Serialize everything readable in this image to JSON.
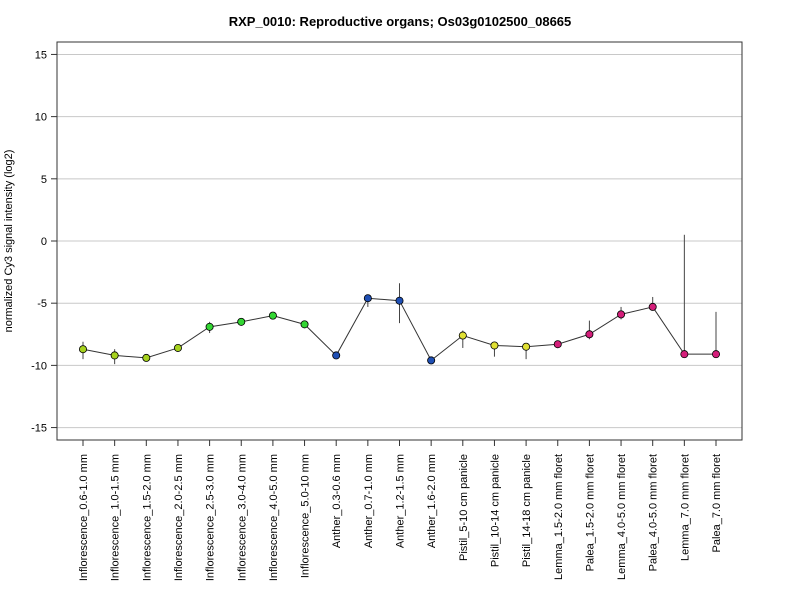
{
  "chart_data": {
    "type": "line",
    "title": "RXP_0010: Reproductive organs; Os03g0102500_08665",
    "xlabel": "",
    "ylabel": "normalized Cy3 signal intensity (log2)",
    "ylim": [
      -16,
      16
    ],
    "yticks": [
      15,
      10,
      5,
      0,
      -5,
      -10,
      -15
    ],
    "grid": true,
    "categories": [
      "Inflorescence_0.6-1.0 mm",
      "Inflorescence_1.0-1.5 mm",
      "Inflorescence_1.5-2.0 mm",
      "Inflorescence_2.0-2.5 mm",
      "Inflorescence_2.5-3.0 mm",
      "Inflorescence_3.0-4.0 mm",
      "Inflorescence_4.0-5.0 mm",
      "Inflorescence_5.0-10 mm",
      "Anther_0.3-0.6 mm",
      "Anther_0.7-1.0 mm",
      "Anther_1.2-1.5 mm",
      "Anther_1.6-2.0 mm",
      "Pistil_5-10 cm panicle",
      "Pistil_10-14 cm panicle",
      "Pistil_14-18 cm panicle",
      "Lemma_1.5-2.0 mm floret",
      "Palea_1.5-2.0 mm floret",
      "Lemma_4.0-5.0 mm floret",
      "Palea_4.0-5.0 mm floret",
      "Lemma_7.0 mm floret",
      "Palea_7.0 mm floret"
    ],
    "values": [
      -8.7,
      -9.2,
      -9.4,
      -8.6,
      -6.9,
      -6.5,
      -6.0,
      -6.7,
      -9.2,
      -4.6,
      -4.8,
      -9.6,
      -7.6,
      -8.4,
      -8.5,
      -8.3,
      -7.5,
      -5.9,
      -5.3,
      -9.1,
      -9.1
    ],
    "error_low": [
      -9.5,
      -9.9,
      -9.6,
      -8.8,
      -7.4,
      -6.7,
      -6.3,
      -6.9,
      -9.3,
      -5.3,
      -6.6,
      -9.7,
      -8.6,
      -9.3,
      -9.5,
      -8.6,
      -7.9,
      -6.3,
      -5.5,
      -9.2,
      -9.2
    ],
    "error_high": [
      -8.1,
      -8.7,
      -9.2,
      -8.4,
      -6.5,
      -6.3,
      -5.8,
      -6.5,
      -9.1,
      -4.4,
      -3.4,
      -9.5,
      -7.2,
      -8.1,
      -8.2,
      -8.0,
      -6.4,
      -5.3,
      -4.5,
      0.5,
      -5.7
    ],
    "point_colors": [
      "#a6d21e",
      "#a6d21e",
      "#a6d21e",
      "#a6d21e",
      "#33d633",
      "#33d633",
      "#33d633",
      "#33d633",
      "#1f4fb4",
      "#1f4fb4",
      "#1f4fb4",
      "#1f4fb4",
      "#e0e034",
      "#e0e034",
      "#e0e034",
      "#d41e7a",
      "#d41e7a",
      "#d41e7a",
      "#d41e7a",
      "#d41e7a",
      "#d41e7a"
    ],
    "line_color": "#333333"
  }
}
